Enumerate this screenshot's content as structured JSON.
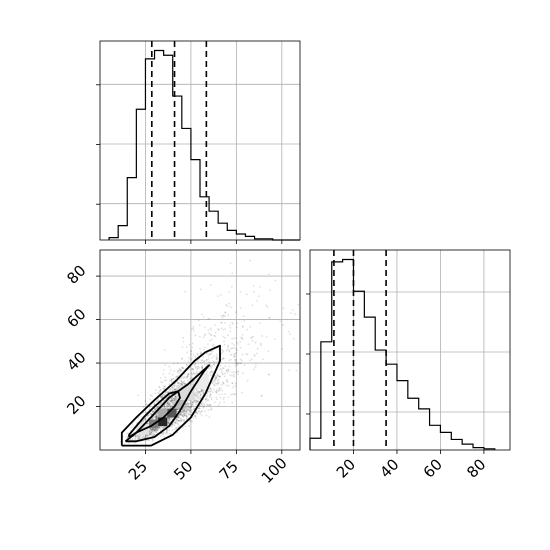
{
  "chart_data": [
    {
      "type": "histogram",
      "panel": "top-left",
      "variable_range": [
        0,
        110
      ],
      "bin_edges": [
        5,
        10,
        15,
        20,
        25,
        30,
        35,
        40,
        45,
        50,
        55,
        60,
        65,
        70,
        75,
        80,
        85,
        90,
        95,
        100,
        105,
        110
      ],
      "counts": [
        2,
        12,
        52,
        109,
        151,
        158,
        154,
        120,
        93,
        67,
        36,
        24,
        14,
        8,
        5,
        3,
        1,
        1,
        0,
        0,
        0
      ],
      "quantile_lines": [
        28.5,
        41,
        58.5
      ],
      "grid": true,
      "tick_labels_visible": false
    },
    {
      "type": "histogram",
      "panel": "bottom-right",
      "variable_range": [
        0,
        92
      ],
      "bin_edges": [
        0,
        5,
        10,
        15,
        20,
        25,
        30,
        35,
        40,
        45,
        50,
        55,
        60,
        65,
        70,
        75,
        80,
        85
      ],
      "counts": [
        10,
        92,
        160,
        162,
        135,
        113,
        85,
        73,
        59,
        44,
        35,
        21,
        15,
        9,
        5,
        2,
        1
      ],
      "quantile_lines": [
        11,
        20,
        35
      ],
      "grid": true,
      "tick_labels_visible": false
    },
    {
      "type": "scatter",
      "panel": "bottom-left",
      "x_range": [
        0,
        110
      ],
      "y_range": [
        0,
        92
      ],
      "xticks": [
        "25",
        "50",
        "75",
        "100"
      ],
      "xtick_values": [
        25,
        50,
        75,
        100
      ],
      "yticks": [
        "20",
        "40",
        "60",
        "80"
      ],
      "ytick_values": [
        20,
        40,
        60,
        80
      ],
      "points_approx_count": 2500,
      "density_cells": [
        {
          "x": [
            27,
            32
          ],
          "y": [
            10,
            14
          ],
          "level": 0.55
        },
        {
          "x": [
            32,
            37
          ],
          "y": [
            11,
            15
          ],
          "level": 0.9
        },
        {
          "x": [
            37,
            42
          ],
          "y": [
            15,
            19
          ],
          "level": 0.7
        },
        {
          "x": [
            32,
            37
          ],
          "y": [
            15,
            19
          ],
          "level": 0.35
        },
        {
          "x": [
            42,
            47
          ],
          "y": [
            19,
            23
          ],
          "level": 0.3
        },
        {
          "x": [
            42,
            52
          ],
          "y": [
            23,
            30
          ],
          "level": 0.15
        },
        {
          "x": [
            52,
            60
          ],
          "y": [
            28,
            35
          ],
          "level": 0.08
        },
        {
          "x": [
            20,
            27
          ],
          "y": [
            7,
            12
          ],
          "level": 0.12
        }
      ],
      "contours": [
        [
          [
            16,
            6
          ],
          [
            20,
            8
          ],
          [
            28,
            11
          ],
          [
            35,
            15
          ],
          [
            41,
            20
          ],
          [
            44,
            24
          ],
          [
            43,
            27
          ],
          [
            38,
            26
          ],
          [
            30,
            20
          ],
          [
            24,
            15
          ],
          [
            19,
            10
          ],
          [
            16,
            7
          ],
          [
            16,
            6
          ]
        ],
        [
          [
            14,
            4
          ],
          [
            20,
            8
          ],
          [
            28,
            15
          ],
          [
            38,
            24
          ],
          [
            48,
            30
          ],
          [
            56,
            36
          ],
          [
            60,
            39
          ],
          [
            57,
            36
          ],
          [
            50,
            27
          ],
          [
            44,
            18
          ],
          [
            38,
            11
          ],
          [
            30,
            6
          ],
          [
            20,
            4
          ],
          [
            14,
            4
          ]
        ],
        [
          [
            12,
            2
          ],
          [
            12,
            8
          ],
          [
            20,
            15
          ],
          [
            30,
            23
          ],
          [
            42,
            32
          ],
          [
            52,
            41
          ],
          [
            58,
            45
          ],
          [
            66,
            48
          ],
          [
            66,
            41
          ],
          [
            58,
            26
          ],
          [
            50,
            15
          ],
          [
            40,
            7
          ],
          [
            28,
            2
          ],
          [
            12,
            2
          ]
        ]
      ],
      "grid": true
    }
  ]
}
